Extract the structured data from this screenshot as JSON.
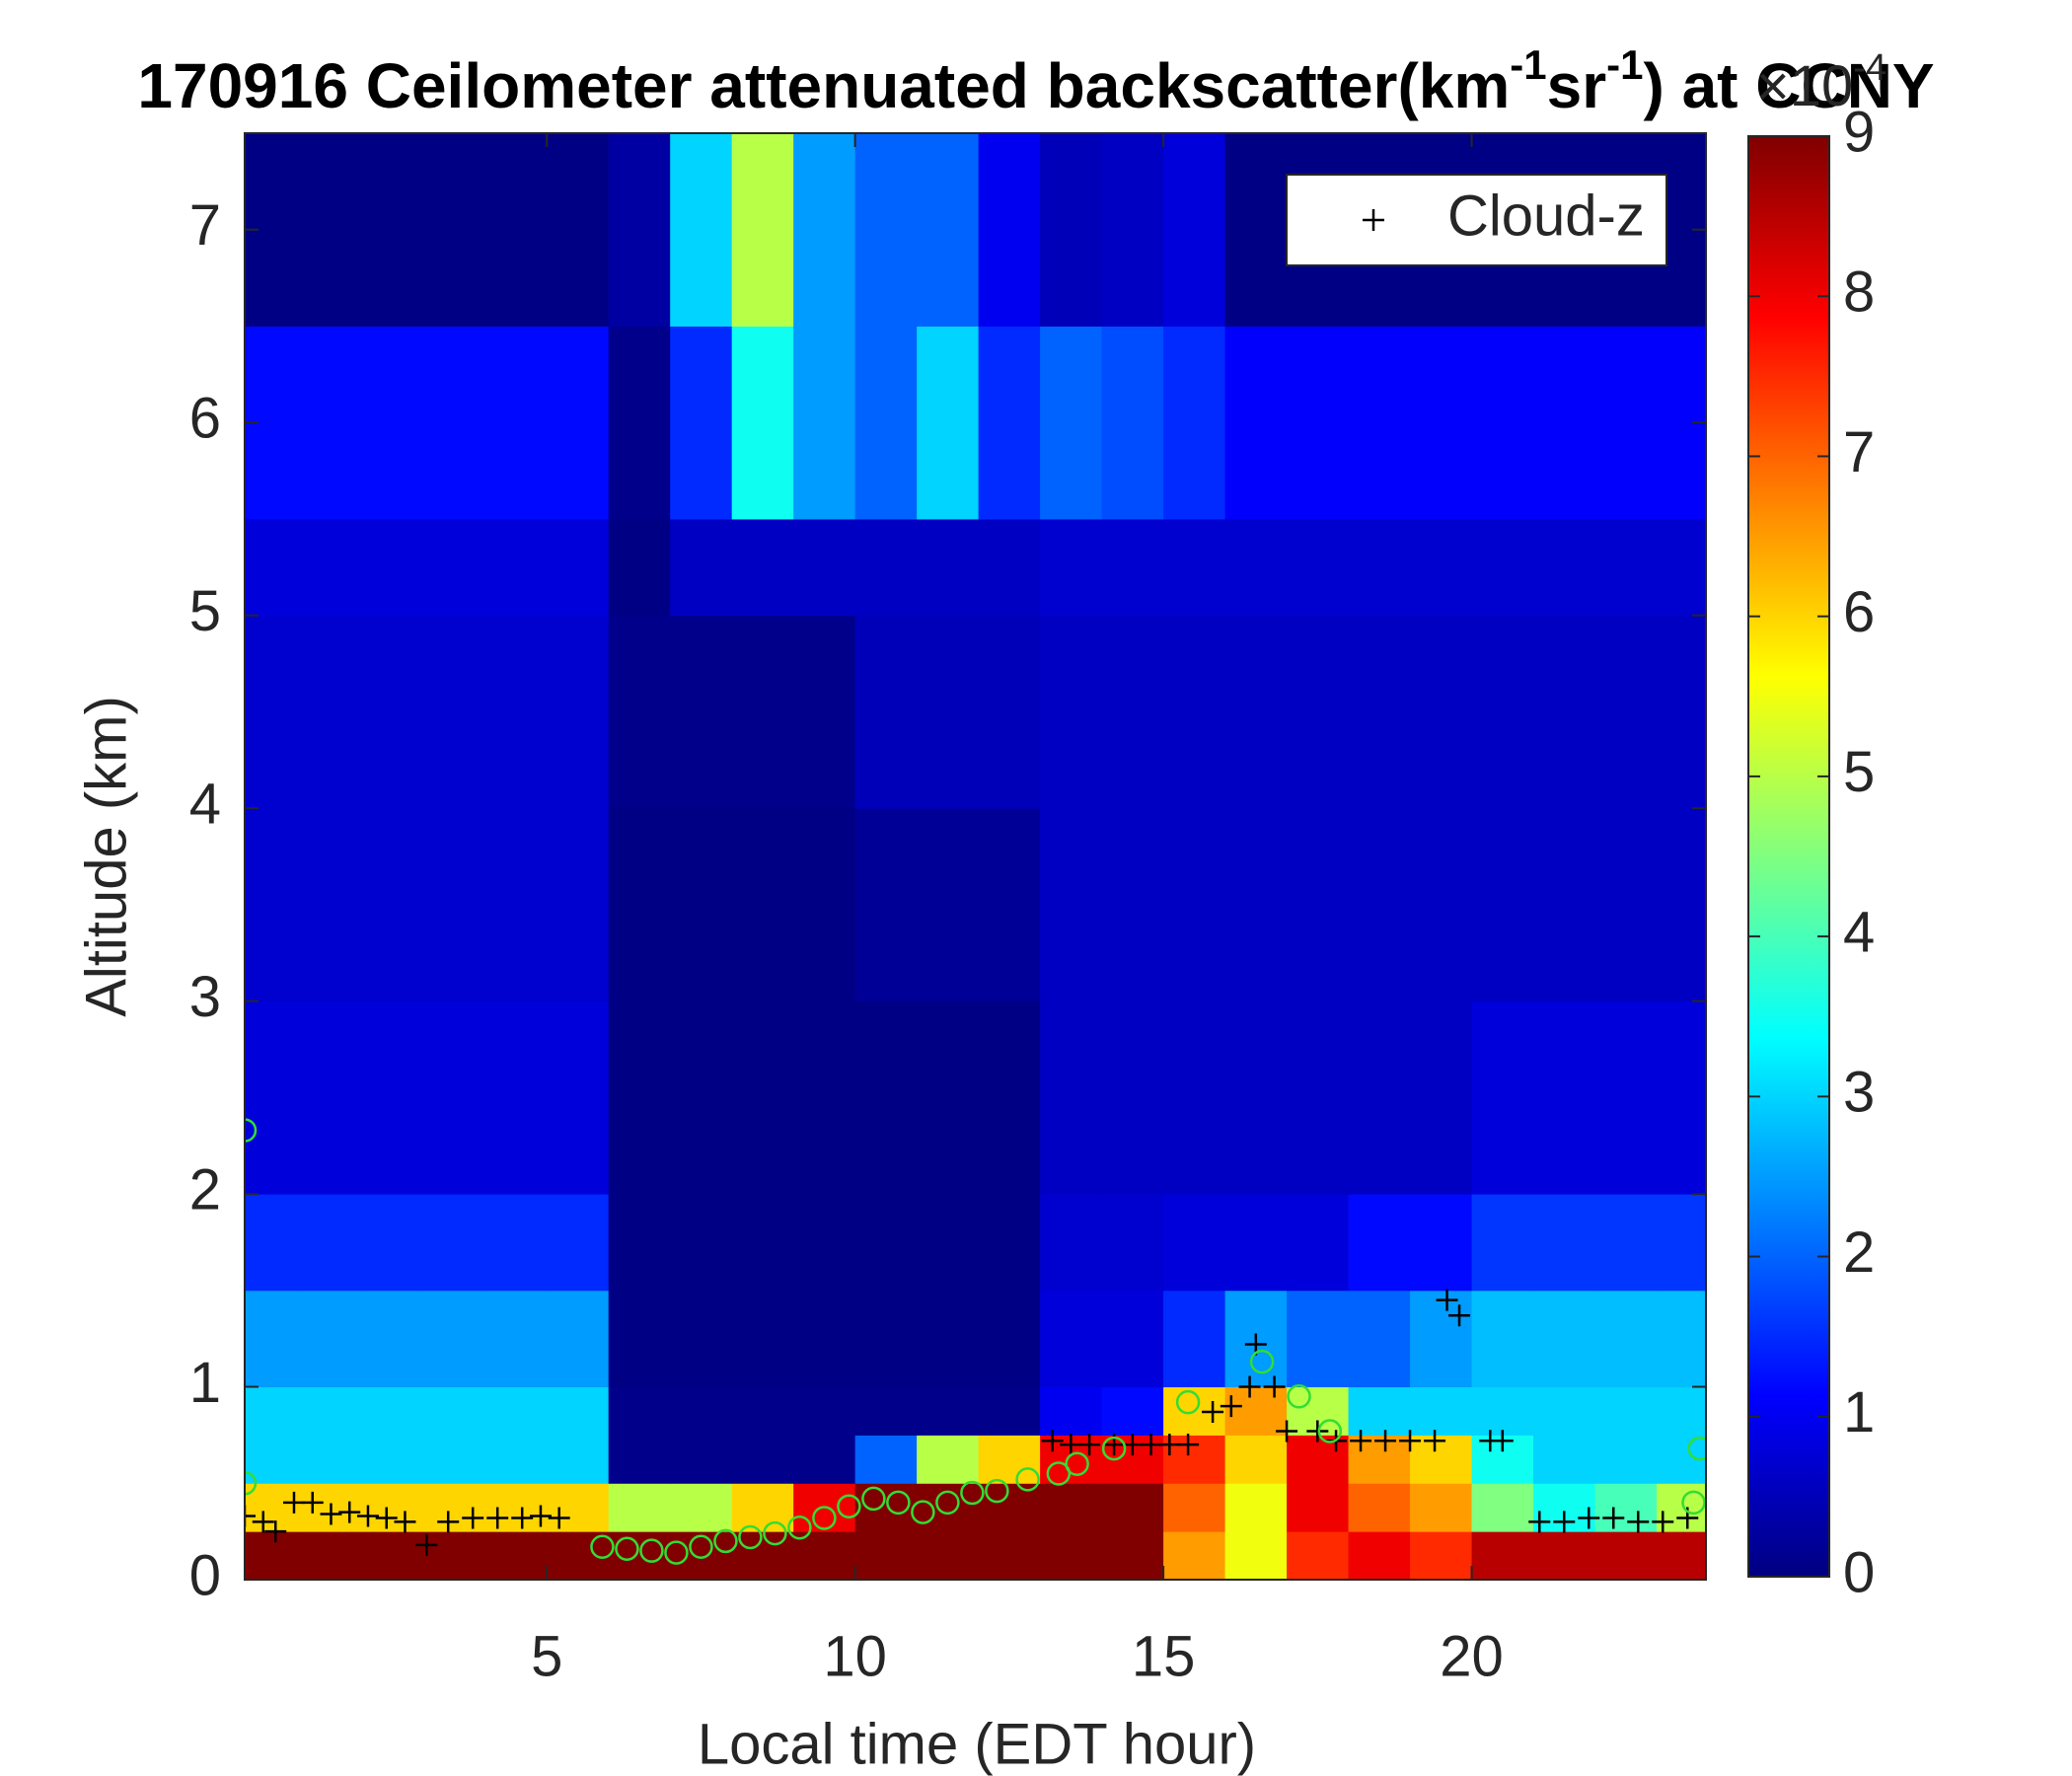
{
  "chart_data": {
    "type": "heatmap",
    "title": [
      "170916 Ceilometer attenuated backscatter(km",
      "-1",
      "sr",
      "-1",
      ") at CCNY"
    ],
    "xlabel": "Local time (EDT hour)",
    "ylabel": "Altitude (km)",
    "xlim": [
      0.1,
      23.8
    ],
    "ylim": [
      0,
      7.5
    ],
    "xticks": [
      5,
      10,
      15,
      20
    ],
    "yticks": [
      0,
      1,
      2,
      3,
      4,
      5,
      6,
      7
    ],
    "colormap": "jet",
    "clim": [
      0,
      9
    ],
    "cticks": [
      0,
      1,
      2,
      3,
      4,
      5,
      6,
      7,
      8,
      9
    ],
    "colorbar_exponent": [
      "×10",
      "-4"
    ],
    "x_edges": [
      0.1,
      1,
      2,
      3,
      4,
      5,
      6,
      7,
      8,
      9,
      10,
      11,
      12,
      13,
      14,
      15,
      16,
      17,
      18,
      19,
      20,
      21,
      22,
      23,
      23.8
    ],
    "y_edges": [
      0,
      0.25,
      0.5,
      0.75,
      1,
      1.5,
      2,
      3,
      4,
      5,
      5.5,
      6.5,
      7.5
    ],
    "z": [
      [
        9,
        9,
        9,
        9,
        9,
        9,
        9,
        9,
        9,
        9,
        9,
        9,
        9,
        9,
        9,
        6.5,
        5.5,
        7.5,
        8,
        7.5,
        8.5,
        8.5,
        8.5,
        8.5
      ],
      [
        6,
        6,
        6,
        6,
        6,
        6,
        5,
        5,
        6,
        8,
        9,
        9,
        9,
        9,
        9,
        7,
        5.5,
        8,
        7,
        6.5,
        4.5,
        3.5,
        4,
        5
      ],
      [
        3,
        3,
        3,
        3,
        3,
        3,
        0.1,
        0.1,
        0.1,
        0.1,
        2,
        5,
        6,
        8,
        8,
        7.5,
        6,
        8,
        6.5,
        6,
        3.5,
        3,
        3,
        3
      ],
      [
        3,
        3,
        3,
        3,
        3,
        3,
        0.1,
        0.1,
        0.1,
        0.1,
        0.1,
        0.1,
        0.1,
        1,
        1.2,
        6,
        6.5,
        5,
        3,
        3,
        3,
        3,
        3,
        3
      ],
      [
        2.5,
        2.5,
        2.5,
        2.5,
        2.5,
        2.5,
        0.05,
        0.05,
        0.05,
        0.05,
        0.05,
        0.05,
        0.05,
        0.8,
        0.8,
        1.5,
        2.5,
        2,
        2,
        2.5,
        2.8,
        2.8,
        2.8,
        2.8
      ],
      [
        1.5,
        1.5,
        1.5,
        1.5,
        1.5,
        1.5,
        0.05,
        0.05,
        0.05,
        0.05,
        0.05,
        0.05,
        0.05,
        0.7,
        0.7,
        0.8,
        0.8,
        0.8,
        1.2,
        1.2,
        1.6,
        1.6,
        1.6,
        1.6
      ],
      [
        0.8,
        0.8,
        0.8,
        0.8,
        0.8,
        0.8,
        0.05,
        0.05,
        0.05,
        0.05,
        0.05,
        0.05,
        0.05,
        0.6,
        0.6,
        0.6,
        0.6,
        0.6,
        0.6,
        0.6,
        0.8,
        0.8,
        0.8,
        0.8
      ],
      [
        0.7,
        0.7,
        0.7,
        0.7,
        0.7,
        0.7,
        0.05,
        0.05,
        0.05,
        0.05,
        0.2,
        0.2,
        0.2,
        0.6,
        0.6,
        0.6,
        0.6,
        0.6,
        0.6,
        0.6,
        0.6,
        0.6,
        0.6,
        0.6
      ],
      [
        0.7,
        0.7,
        0.7,
        0.7,
        0.7,
        0.7,
        0.1,
        0.1,
        0.1,
        0.1,
        0.5,
        0.5,
        0.5,
        0.6,
        0.6,
        0.6,
        0.6,
        0.6,
        0.6,
        0.6,
        0.6,
        0.6,
        0.6,
        0.6
      ],
      [
        0.8,
        0.8,
        0.8,
        0.8,
        0.8,
        0.8,
        0.05,
        0.6,
        0.6,
        0.6,
        0.6,
        0.6,
        0.6,
        0.7,
        0.7,
        0.7,
        0.7,
        0.7,
        0.7,
        0.7,
        0.7,
        0.7,
        0.7,
        0.7
      ],
      [
        1.2,
        1.2,
        1.2,
        1.2,
        1.2,
        1.2,
        0.1,
        1.5,
        3.5,
        2.5,
        2,
        3,
        1.5,
        2,
        1.8,
        1.5,
        1.1,
        1.1,
        1.1,
        1.1,
        1.1,
        1.1,
        1.1,
        1.1
      ],
      [
        0.05,
        0.05,
        0.05,
        0.05,
        0.05,
        0.05,
        0.3,
        3,
        5,
        2.5,
        2,
        2,
        1,
        0.5,
        0.6,
        0.8,
        0.05,
        0.05,
        0.05,
        0.05,
        0.05,
        0.05,
        0.05,
        0.05
      ]
    ],
    "series": [
      {
        "name": "Cloud-z",
        "color": "#000000",
        "marker": "+",
        "x": [
          0.1,
          0.4,
          0.6,
          0.9,
          1.2,
          1.5,
          1.8,
          2.1,
          2.4,
          2.7,
          3.05,
          3.4,
          3.8,
          4.2,
          4.6,
          4.9,
          5.2,
          13.2,
          13.5,
          13.8,
          14.2,
          14.5,
          14.8,
          15.1,
          15.4,
          15.8,
          16.1,
          16.4,
          16.5,
          16.8,
          17,
          17.5,
          17.8,
          18.2,
          18.6,
          19,
          19.4,
          19.6,
          19.8,
          20.3,
          20.5,
          21.1,
          21.5,
          21.9,
          22.3,
          22.7,
          23.1,
          23.5
        ],
        "values": [
          0.33,
          0.3,
          0.25,
          0.4,
          0.4,
          0.34,
          0.35,
          0.33,
          0.32,
          0.3,
          0.18,
          0.3,
          0.32,
          0.32,
          0.32,
          0.33,
          0.32,
          0.72,
          0.7,
          0.7,
          0.7,
          0.7,
          0.7,
          0.7,
          0.7,
          0.87,
          0.9,
          1.0,
          1.22,
          1.0,
          0.77,
          0.77,
          0.72,
          0.72,
          0.72,
          0.72,
          0.72,
          1.45,
          1.37,
          0.72,
          0.72,
          0.3,
          0.3,
          0.32,
          0.32,
          0.3,
          0.3,
          0.32
        ]
      },
      {
        "color": "#33dd33",
        "marker": "o",
        "x": [
          0.1,
          0.1,
          5.9,
          6.3,
          6.7,
          7.1,
          7.5,
          7.9,
          8.3,
          8.7,
          9.1,
          9.5,
          9.9,
          10.3,
          10.7,
          11.1,
          11.5,
          11.9,
          12.3,
          12.8,
          13.3,
          13.6,
          14.2,
          15.4,
          16.6,
          17.2,
          17.7,
          23.6,
          23.7
        ],
        "values": [
          2.33,
          0.5,
          0.17,
          0.16,
          0.15,
          0.14,
          0.17,
          0.2,
          0.22,
          0.24,
          0.27,
          0.32,
          0.38,
          0.42,
          0.4,
          0.35,
          0.4,
          0.45,
          0.46,
          0.52,
          0.55,
          0.6,
          0.68,
          0.92,
          1.13,
          0.95,
          0.77,
          0.4,
          0.68
        ]
      }
    ],
    "legend": "upper right"
  }
}
